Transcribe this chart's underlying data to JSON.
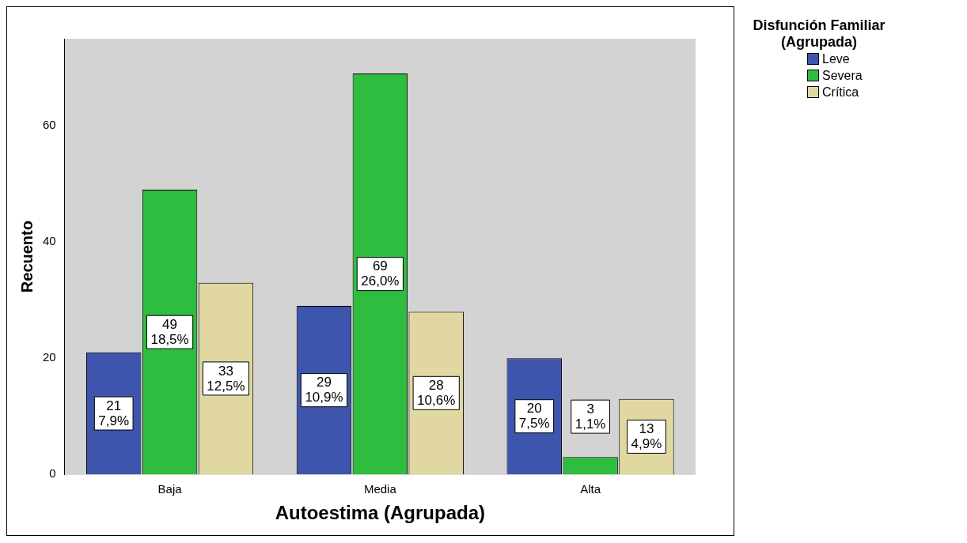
{
  "chart_data": {
    "type": "bar",
    "xlabel": "Autoestima (Agrupada)",
    "ylabel": "Recuento",
    "legend_title": "Disfunción Familiar (Agrupada)",
    "categories": [
      "Baja",
      "Media",
      "Alta"
    ],
    "series": [
      {
        "name": "Leve",
        "color": "#3d55ad",
        "values": [
          21,
          29,
          20
        ],
        "value_labels": [
          "21\n7,9%",
          "29\n10,9%",
          "20\n7,5%"
        ]
      },
      {
        "name": "Severa",
        "color": "#2ebd3e",
        "values": [
          49,
          69,
          3
        ],
        "value_labels": [
          "49\n18,5%",
          "69\n26,0%",
          "3\n1,1%"
        ]
      },
      {
        "name": "Crítica",
        "color": "#e0d8a0",
        "values": [
          33,
          28,
          13
        ],
        "value_labels": [
          "33\n12,5%",
          "28\n10,6%",
          "13\n4,9%"
        ]
      }
    ],
    "ylim": [
      0,
      75
    ],
    "yticks": [
      0,
      20,
      40,
      60
    ],
    "grid": false,
    "legend": "top right"
  }
}
